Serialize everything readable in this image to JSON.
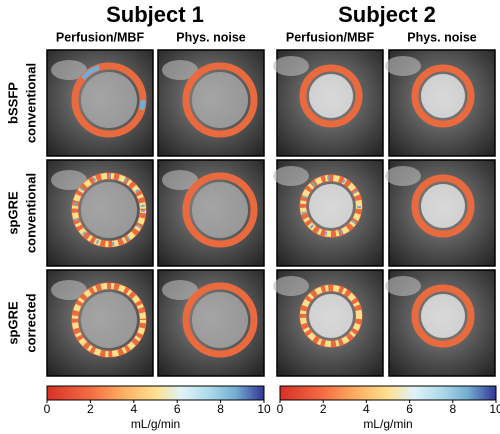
{
  "subjects": [
    {
      "title": "Subject 1",
      "columns": [
        "Perfusion/MBF",
        "Phys. noise"
      ]
    },
    {
      "title": "Subject 2",
      "columns": [
        "Perfusion/MBF",
        "Phys. noise"
      ]
    }
  ],
  "rows": [
    [
      "bSSFP",
      "conventional"
    ],
    [
      "spGRE",
      "conventional"
    ],
    [
      "spGRE",
      "corrected"
    ]
  ],
  "colorbars": [
    {
      "range": [
        0,
        10
      ],
      "ticks": [
        0,
        2,
        4,
        6,
        8,
        10
      ],
      "label": "mL/g/min"
    },
    {
      "range": [
        0,
        10
      ],
      "ticks": [
        0,
        2,
        4,
        6,
        8,
        10
      ],
      "label": "mL/g/min"
    }
  ]
}
